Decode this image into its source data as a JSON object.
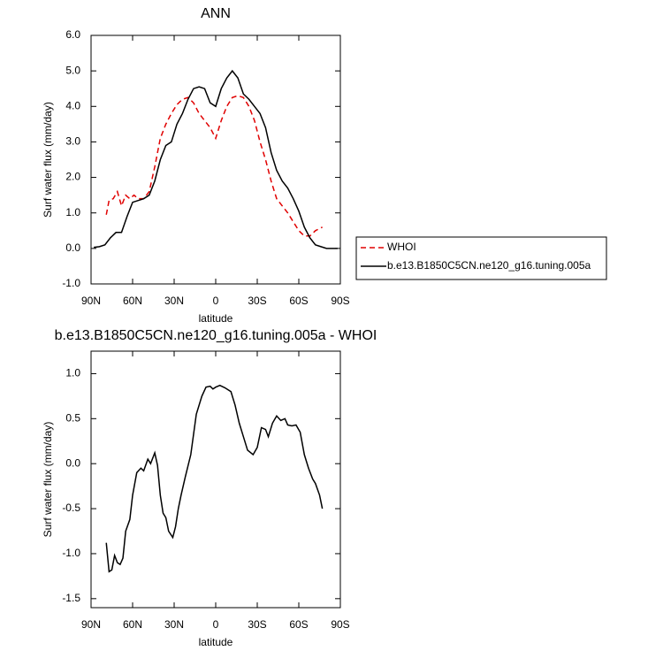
{
  "chart_data": [
    {
      "type": "line",
      "title": "ANN",
      "xlabel": "latitude",
      "ylabel": "Surf water flux (mm/day)",
      "xlim": [
        90,
        -90
      ],
      "ylim": [
        -1,
        6
      ],
      "xticks": [
        {
          "value": 90,
          "label": "90N"
        },
        {
          "value": 60,
          "label": "60N"
        },
        {
          "value": 30,
          "label": "30N"
        },
        0,
        {
          "value": -30,
          "label": "30S"
        },
        {
          "value": -60,
          "label": "60S"
        },
        {
          "value": -90,
          "label": "90S"
        }
      ],
      "yticks": [
        {
          "value": -1,
          "label": "-1.0"
        },
        {
          "value": 0,
          "label": "0.0"
        },
        {
          "value": 1,
          "label": "1.0"
        },
        {
          "value": 2,
          "label": "2.0"
        },
        {
          "value": 3,
          "label": "3.0"
        },
        {
          "value": 4,
          "label": "4.0"
        },
        {
          "value": 5,
          "label": "5.0"
        },
        {
          "value": 6,
          "label": "6.0"
        }
      ],
      "legend": "right",
      "series": [
        {
          "name": "WHOI",
          "color": "#e00000",
          "linestyle": "dashed",
          "x": [
            79,
            77,
            74,
            71,
            68,
            65,
            62,
            59,
            56,
            52,
            48,
            44,
            40,
            36,
            32,
            28,
            24,
            20,
            16,
            12,
            8,
            4,
            0,
            -4,
            -8,
            -12,
            -16,
            -20,
            -24,
            -28,
            -32,
            -36,
            -40,
            -44,
            -48,
            -52,
            -56,
            -60,
            -64,
            -68,
            -72,
            -77
          ],
          "values": [
            0.95,
            1.35,
            1.4,
            1.6,
            1.2,
            1.5,
            1.4,
            1.5,
            1.4,
            1.4,
            1.6,
            2.3,
            3.1,
            3.5,
            3.8,
            4.05,
            4.2,
            4.25,
            4.1,
            3.8,
            3.6,
            3.4,
            3.1,
            3.6,
            4.0,
            4.25,
            4.3,
            4.25,
            4.0,
            3.6,
            3.0,
            2.5,
            1.9,
            1.4,
            1.2,
            1.0,
            0.75,
            0.5,
            0.35,
            0.35,
            0.5,
            0.6
          ]
        },
        {
          "name": "b.e13.B1850C5CN.ne120_g16.tuning.005a",
          "color": "#000000",
          "linestyle": "solid",
          "x": [
            88,
            84,
            80,
            76,
            72,
            68,
            64,
            60,
            56,
            52,
            48,
            44,
            40,
            36,
            32,
            28,
            24,
            20,
            16,
            12,
            8,
            4,
            0,
            -4,
            -8,
            -12,
            -16,
            -20,
            -24,
            -28,
            -32,
            -36,
            -40,
            -44,
            -48,
            -52,
            -56,
            -60,
            -64,
            -68,
            -72,
            -76,
            -80,
            -84,
            -88
          ],
          "values": [
            0.03,
            0.05,
            0.1,
            0.3,
            0.45,
            0.45,
            0.9,
            1.3,
            1.35,
            1.4,
            1.5,
            1.9,
            2.5,
            2.9,
            3.0,
            3.5,
            3.8,
            4.2,
            4.5,
            4.55,
            4.5,
            4.1,
            4.0,
            4.5,
            4.8,
            5.0,
            4.8,
            4.35,
            4.2,
            4.0,
            3.8,
            3.4,
            2.7,
            2.2,
            1.9,
            1.7,
            1.4,
            1.05,
            0.6,
            0.3,
            0.1,
            0.05,
            0.0,
            0.0,
            0.0
          ]
        }
      ]
    },
    {
      "type": "line",
      "title": "b.e13.B1850C5CN.ne120_g16.tuning.005a - WHOI",
      "xlabel": "latitude",
      "ylabel": "Surf water flux (mm/day)",
      "xlim": [
        90,
        -90
      ],
      "ylim": [
        -1.6,
        1.25
      ],
      "xticks": [
        {
          "value": 90,
          "label": "90N"
        },
        {
          "value": 60,
          "label": "60N"
        },
        {
          "value": 30,
          "label": "30N"
        },
        0,
        {
          "value": -30,
          "label": "30S"
        },
        {
          "value": -60,
          "label": "60S"
        },
        {
          "value": -90,
          "label": "90S"
        }
      ],
      "yticks": [
        {
          "value": -1.5,
          "label": "-1.5"
        },
        {
          "value": -1,
          "label": "-1.0"
        },
        {
          "value": -0.5,
          "label": "-0.5"
        },
        {
          "value": 0,
          "label": "0.0"
        },
        {
          "value": 0.5,
          "label": "0.5"
        },
        {
          "value": 1,
          "label": "1.0"
        }
      ],
      "series": [
        {
          "color": "#000000",
          "linestyle": "solid",
          "x": [
            79,
            77,
            75,
            73,
            71,
            69,
            67,
            65,
            62,
            60,
            57,
            54,
            52,
            49,
            47,
            44,
            42,
            40,
            38,
            36,
            34,
            31,
            29,
            27,
            25,
            22,
            18,
            14,
            10,
            7,
            4,
            2,
            0,
            -3,
            -7,
            -11,
            -14,
            -17,
            -20,
            -23,
            -27,
            -30,
            -33,
            -36,
            -38,
            -41,
            -44,
            -47,
            -50,
            -52,
            -55,
            -58,
            -61,
            -64,
            -67,
            -70,
            -72,
            -75,
            -77
          ],
          "values": [
            -0.88,
            -1.2,
            -1.18,
            -1.02,
            -1.1,
            -1.12,
            -1.05,
            -0.75,
            -0.62,
            -0.35,
            -0.1,
            -0.05,
            -0.08,
            0.05,
            0.0,
            0.12,
            -0.02,
            -0.35,
            -0.55,
            -0.6,
            -0.75,
            -0.82,
            -0.7,
            -0.5,
            -0.35,
            -0.15,
            0.1,
            0.55,
            0.75,
            0.85,
            0.86,
            0.83,
            0.85,
            0.87,
            0.84,
            0.8,
            0.65,
            0.45,
            0.3,
            0.15,
            0.1,
            0.18,
            0.4,
            0.38,
            0.3,
            0.45,
            0.53,
            0.48,
            0.5,
            0.43,
            0.42,
            0.43,
            0.35,
            0.1,
            -0.05,
            -0.17,
            -0.22,
            -0.35,
            -0.5
          ]
        }
      ]
    }
  ]
}
